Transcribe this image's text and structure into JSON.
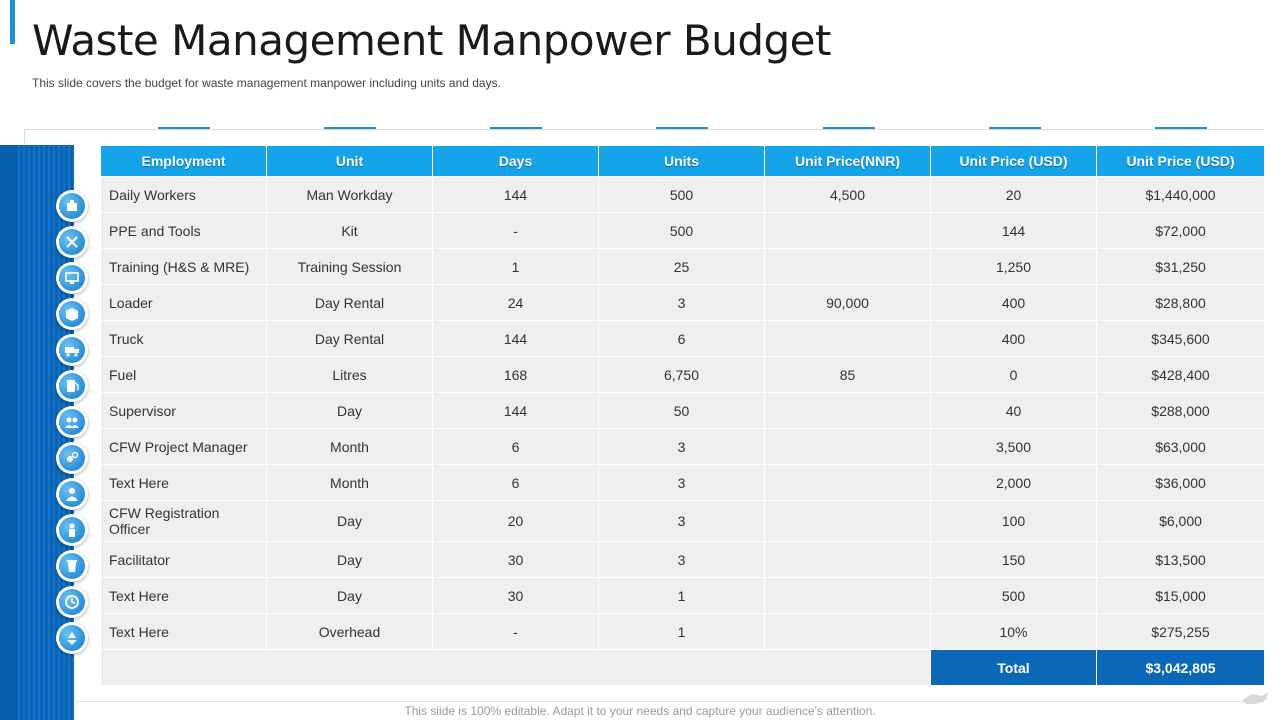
{
  "header": {
    "title": "Waste Management Manpower Budget",
    "subtitle": "This slide covers the budget for waste management manpower including units and days."
  },
  "table": {
    "columns": [
      "Employment",
      "Unit",
      "Days",
      "Units",
      "Unit Price(NNR)",
      "Unit Price (USD)",
      "Unit Price (USD)"
    ],
    "rows": [
      [
        "Daily Workers",
        "Man Workday",
        "144",
        "500",
        "4,500",
        "20",
        "$1,440,000"
      ],
      [
        "PPE and Tools",
        "Kit",
        "-",
        "500",
        "",
        "144",
        "$72,000"
      ],
      [
        "Training (H&S & MRE)",
        "Training Session",
        "1",
        "25",
        "",
        "1,250",
        "$31,250"
      ],
      [
        "Loader",
        "Day Rental",
        "24",
        "3",
        "90,000",
        "400",
        "$28,800"
      ],
      [
        "Truck",
        "Day Rental",
        "144",
        "6",
        "",
        "400",
        "$345,600"
      ],
      [
        "Fuel",
        "Litres",
        "168",
        "6,750",
        "85",
        "0",
        "$428,400"
      ],
      [
        "Supervisor",
        "Day",
        "144",
        "50",
        "",
        "40",
        "$288,000"
      ],
      [
        "CFW Project Manager",
        "Month",
        "6",
        "3",
        "",
        "3,500",
        "$63,000"
      ],
      [
        "Text Here",
        "Month",
        "6",
        "3",
        "",
        "2,000",
        "$36,000"
      ],
      [
        "CFW Registration Officer",
        "Day",
        "20",
        "3",
        "",
        "100",
        "$6,000"
      ],
      [
        "Facilitator",
        "Day",
        "30",
        "3",
        "",
        "150",
        "$13,500"
      ],
      [
        "Text Here",
        "Day",
        "30",
        "1",
        "",
        "500",
        "$15,000"
      ],
      [
        "Text Here",
        "Overhead",
        "-",
        "1",
        "",
        "10%",
        "$275,255"
      ]
    ],
    "total_label": "Total",
    "total_value": "$3,042,805"
  },
  "side_icons": [
    "workers-icon",
    "tools-icon",
    "training-icon",
    "box-icon",
    "truck-icon",
    "fuel-icon",
    "supervisor-icon",
    "manager-icon",
    "person-icon",
    "officer-icon",
    "facilitator-icon",
    "clock-icon",
    "recycle-icon"
  ],
  "footer": {
    "text": "This slide is 100% editable. Adapt it to your needs and capture your audience's attention."
  },
  "colors": {
    "accent": "#1e90d8",
    "header_bg": "#15a3e9",
    "total_bg": "#0b68b8",
    "side_bar": "#0a63b5"
  }
}
